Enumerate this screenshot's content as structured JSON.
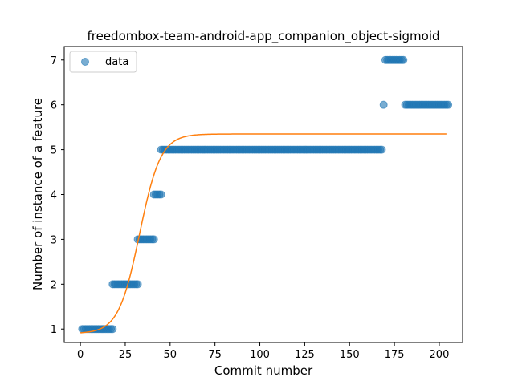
{
  "chart_data": {
    "type": "scatter",
    "title": "freedombox-team-android-app_companion_object-sigmoid",
    "xlabel": "Commit number",
    "ylabel": "Number of instance of a feature",
    "xlim": [
      -9,
      213
    ],
    "ylim": [
      0.7,
      7.3
    ],
    "xticks": [
      0,
      25,
      50,
      75,
      100,
      125,
      150,
      175,
      200
    ],
    "yticks": [
      1,
      2,
      3,
      4,
      5,
      6,
      7
    ],
    "legend": {
      "placement": "top-left",
      "entries": [
        "data"
      ]
    },
    "grid": false,
    "series": [
      {
        "name": "data",
        "kind": "scatter",
        "color": "#1f77b4",
        "segments": [
          {
            "x_from": 1,
            "x_to": 18,
            "y": 1
          },
          {
            "x_from": 18,
            "x_to": 32,
            "y": 2
          },
          {
            "x_from": 32,
            "x_to": 41,
            "y": 3
          },
          {
            "x_from": 41,
            "x_to": 45,
            "y": 4
          },
          {
            "x_from": 45,
            "x_to": 168,
            "y": 5
          },
          {
            "x_from": 169,
            "x_to": 169,
            "y": 6
          },
          {
            "x_from": 170,
            "x_to": 180,
            "y": 7
          },
          {
            "x_from": 181,
            "x_to": 205,
            "y": 6
          }
        ]
      },
      {
        "kind": "sigmoid-fit",
        "color": "#ff7f0e",
        "x_range": [
          0,
          204
        ],
        "params": {
          "L": 4.45,
          "k": 0.17,
          "x0": 33,
          "b": 0.9
        }
      }
    ]
  }
}
